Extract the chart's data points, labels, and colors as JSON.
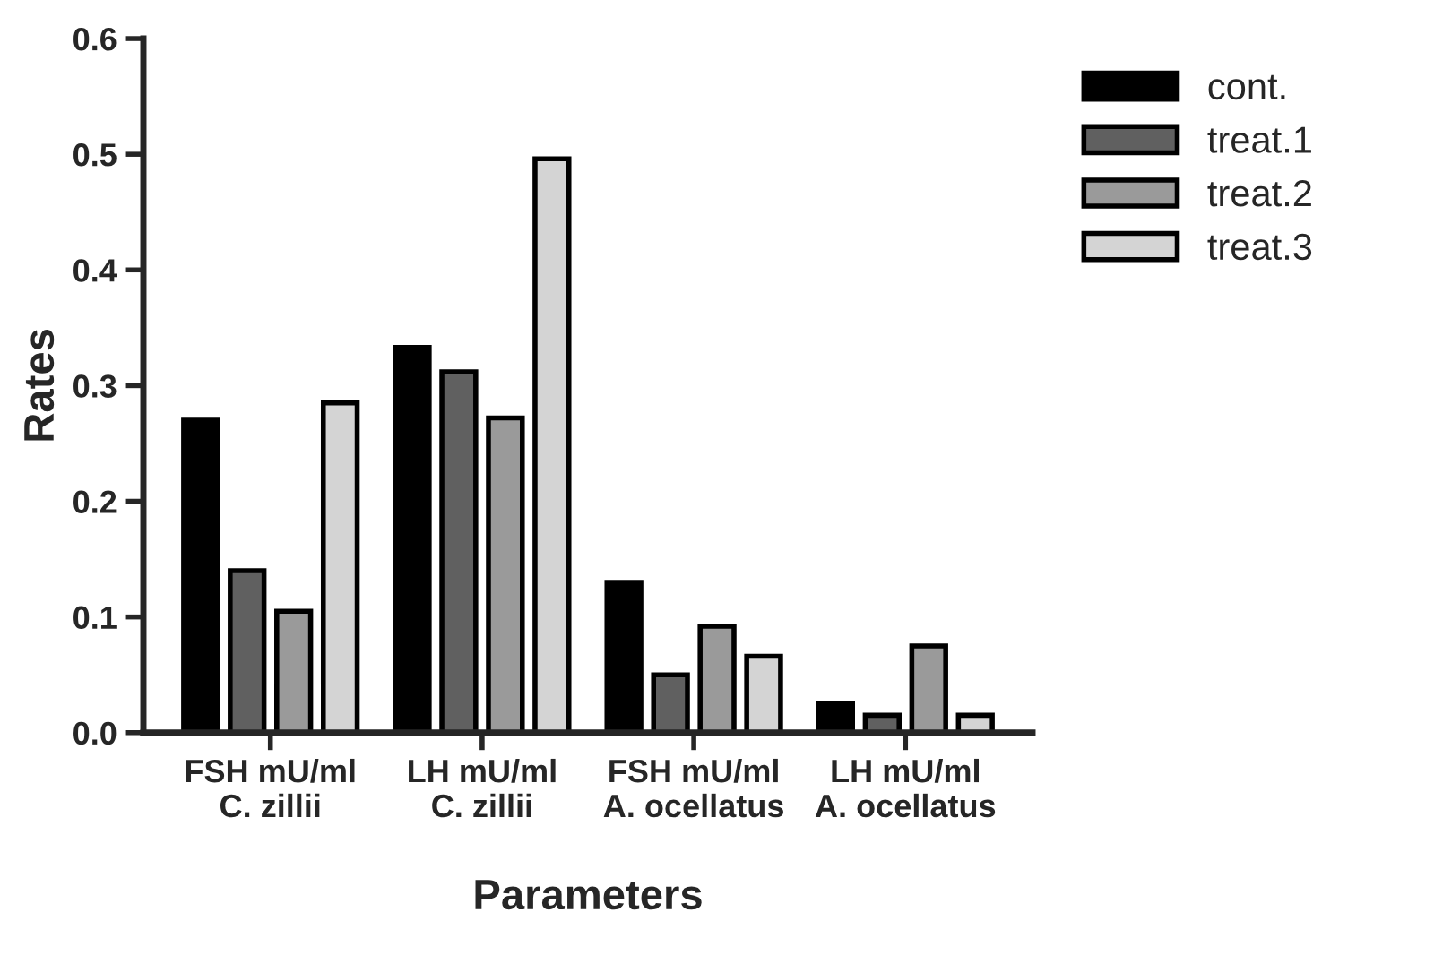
{
  "chart_data": {
    "type": "bar",
    "xlabel": "Parameters",
    "ylabel": "Rates",
    "categories": [
      "FSH mU/ml\nC. zillii",
      "LH mU/ml\nC. zillii",
      "FSH mU/ml\nA. ocellatus",
      "LH mU/ml\nA. ocellatus"
    ],
    "series": [
      {
        "name": "cont.",
        "color": "#000000",
        "values": [
          0.27,
          0.333,
          0.13,
          0.025
        ]
      },
      {
        "name": "treat.1",
        "color": "#606060",
        "values": [
          0.14,
          0.312,
          0.05,
          0.015
        ]
      },
      {
        "name": "treat.2",
        "color": "#9a9a9a",
        "values": [
          0.105,
          0.272,
          0.092,
          0.075
        ]
      },
      {
        "name": "treat.3",
        "color": "#d4d4d4",
        "values": [
          0.285,
          0.496,
          0.066,
          0.015
        ]
      }
    ],
    "ylim": [
      0,
      0.6
    ],
    "yticks": [
      {
        "value": 0,
        "label": "0.0"
      },
      0.1,
      0.2,
      0.3,
      0.4,
      0.5,
      0.6
    ],
    "grid": false,
    "legend": "top right"
  }
}
